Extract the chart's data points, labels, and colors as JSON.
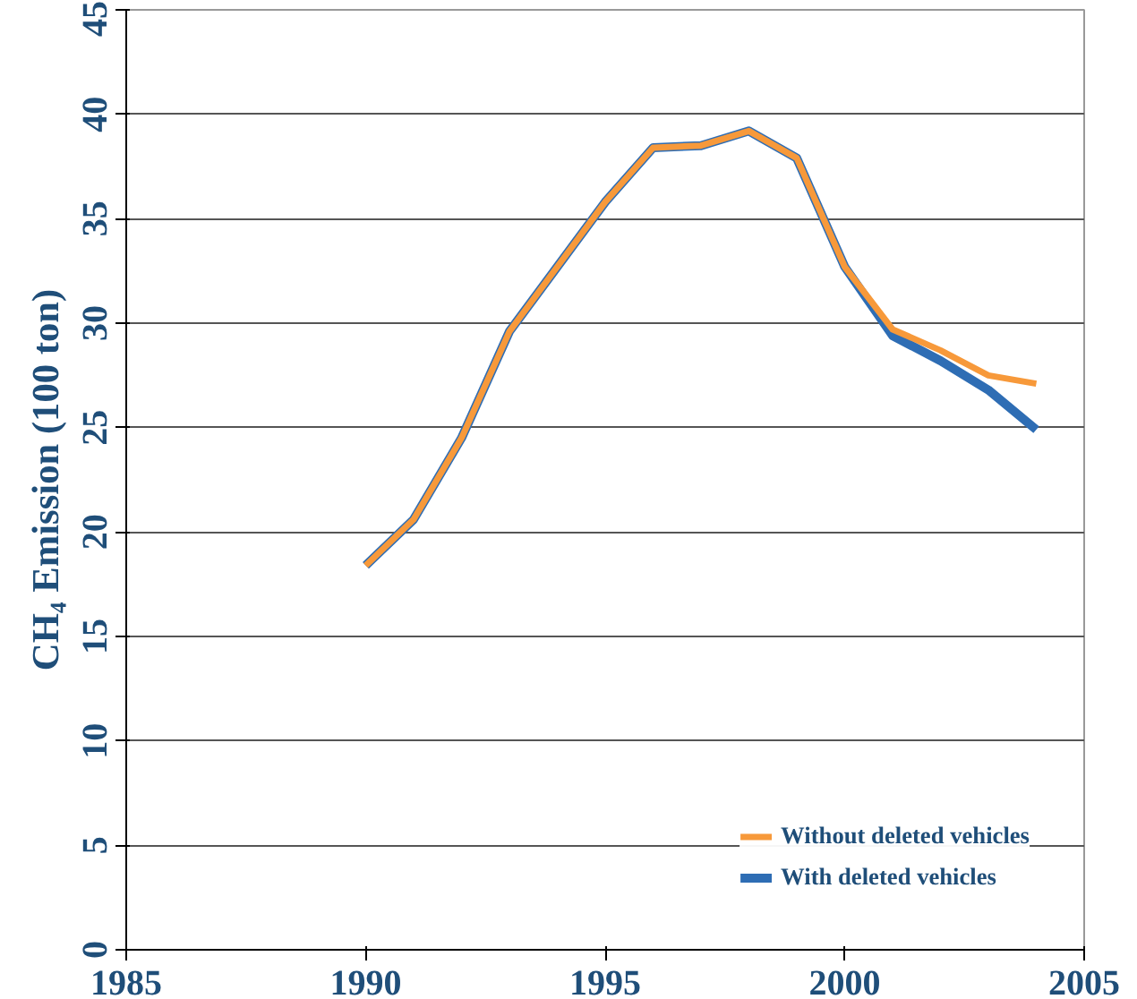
{
  "chart_data": {
    "type": "line",
    "ylabel": "CH₄ Emission (100 ton)",
    "xlim": [
      1985,
      2005
    ],
    "xticks": [
      1985,
      1990,
      1995,
      2000,
      2005
    ],
    "ylim": [
      0,
      45
    ],
    "yticks": [
      0,
      5,
      10,
      15,
      20,
      25,
      30,
      35,
      40,
      45
    ],
    "grid": "y",
    "legend": "bottom right",
    "line_style": "solid",
    "marker": "none",
    "series": [
      {
        "name": "With deleted vehicles",
        "color": "#2e6db4",
        "x": [
          1990,
          1991,
          1992,
          1993,
          1994,
          1995,
          1996,
          1997,
          1998,
          1999,
          2000,
          2001,
          2002,
          2003,
          2004
        ],
        "values": [
          18.4,
          20.6,
          24.5,
          29.6,
          32.7,
          35.8,
          38.4,
          38.5,
          39.2,
          37.9,
          32.7,
          29.4,
          28.2,
          26.8,
          24.9
        ]
      },
      {
        "name": "Without deleted vehicles",
        "color": "#f7993a",
        "x": [
          1990,
          1991,
          1992,
          1993,
          1994,
          1995,
          1996,
          1997,
          1998,
          1999,
          2000,
          2001,
          2002,
          2003,
          2004
        ],
        "values": [
          18.4,
          20.6,
          24.5,
          29.6,
          32.7,
          35.8,
          38.4,
          38.5,
          39.2,
          37.9,
          32.7,
          29.7,
          28.7,
          27.5,
          27.1
        ]
      }
    ]
  }
}
